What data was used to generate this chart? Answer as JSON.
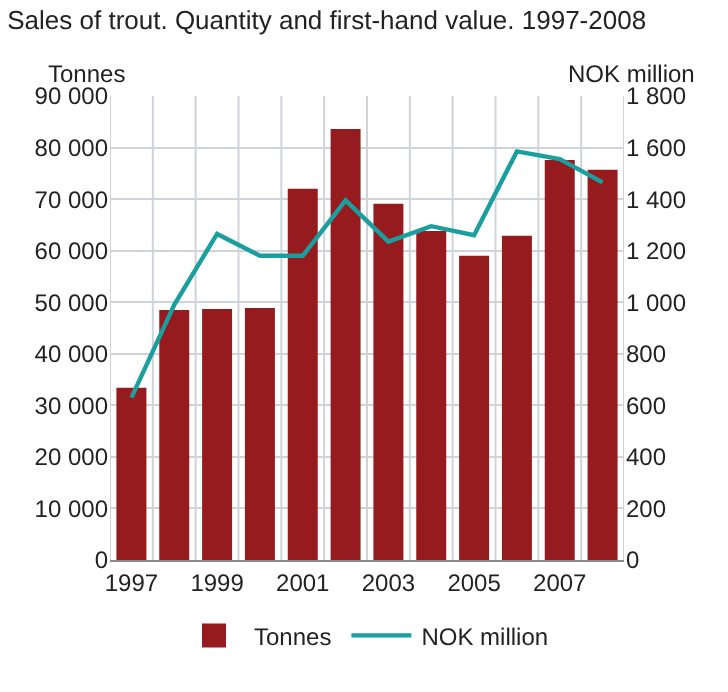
{
  "chart_data": {
    "type": "bar",
    "title": "Sales of trout. Quantity and first-hand value. 1997-2008",
    "categories": [
      "1997",
      null,
      "1999",
      null,
      "2001",
      null,
      "2003",
      null,
      "2005",
      null,
      "2007",
      null
    ],
    "ylabel": "Tonnes",
    "y2label": "NOK million",
    "series": [
      {
        "name": "Tonnes",
        "color": "#961b1e",
        "values": [
          33400,
          48500,
          48700,
          48900,
          72000,
          83600,
          69100,
          63800,
          59000,
          62900,
          77600,
          75700
        ]
      },
      {
        "name": "NOK million",
        "type": "line",
        "axis": "y2",
        "color": "#1a9e9e",
        "values": [
          630,
          990,
          1265,
          1180,
          1180,
          1395,
          1235,
          1295,
          1260,
          1585,
          1555,
          1465
        ]
      }
    ],
    "ylim": [
      0,
      90000
    ],
    "yticks": [
      {
        "value": 0,
        "label": "0"
      },
      {
        "value": 10000,
        "label": "10 000"
      },
      {
        "value": 20000,
        "label": "20 000"
      },
      {
        "value": 30000,
        "label": "30 000"
      },
      {
        "value": 40000,
        "label": "40 000"
      },
      {
        "value": 50000,
        "label": "50 000"
      },
      {
        "value": 60000,
        "label": "60 000"
      },
      {
        "value": 70000,
        "label": "70 000"
      },
      {
        "value": 80000,
        "label": "80 000"
      },
      {
        "value": 90000,
        "label": "90 000"
      }
    ],
    "y2lim": [
      0,
      1800
    ],
    "y2ticks": [
      0,
      200,
      400,
      600,
      800,
      {
        "value": 1000,
        "label": "1 000"
      },
      {
        "value": 1200,
        "label": "1 200"
      },
      {
        "value": 1400,
        "label": "1 400"
      },
      {
        "value": 1600,
        "label": "1 600"
      },
      {
        "value": 1800,
        "label": "1 800"
      }
    ],
    "grid": true,
    "legend": "bottom",
    "marker": "none",
    "line_style": "solid"
  }
}
